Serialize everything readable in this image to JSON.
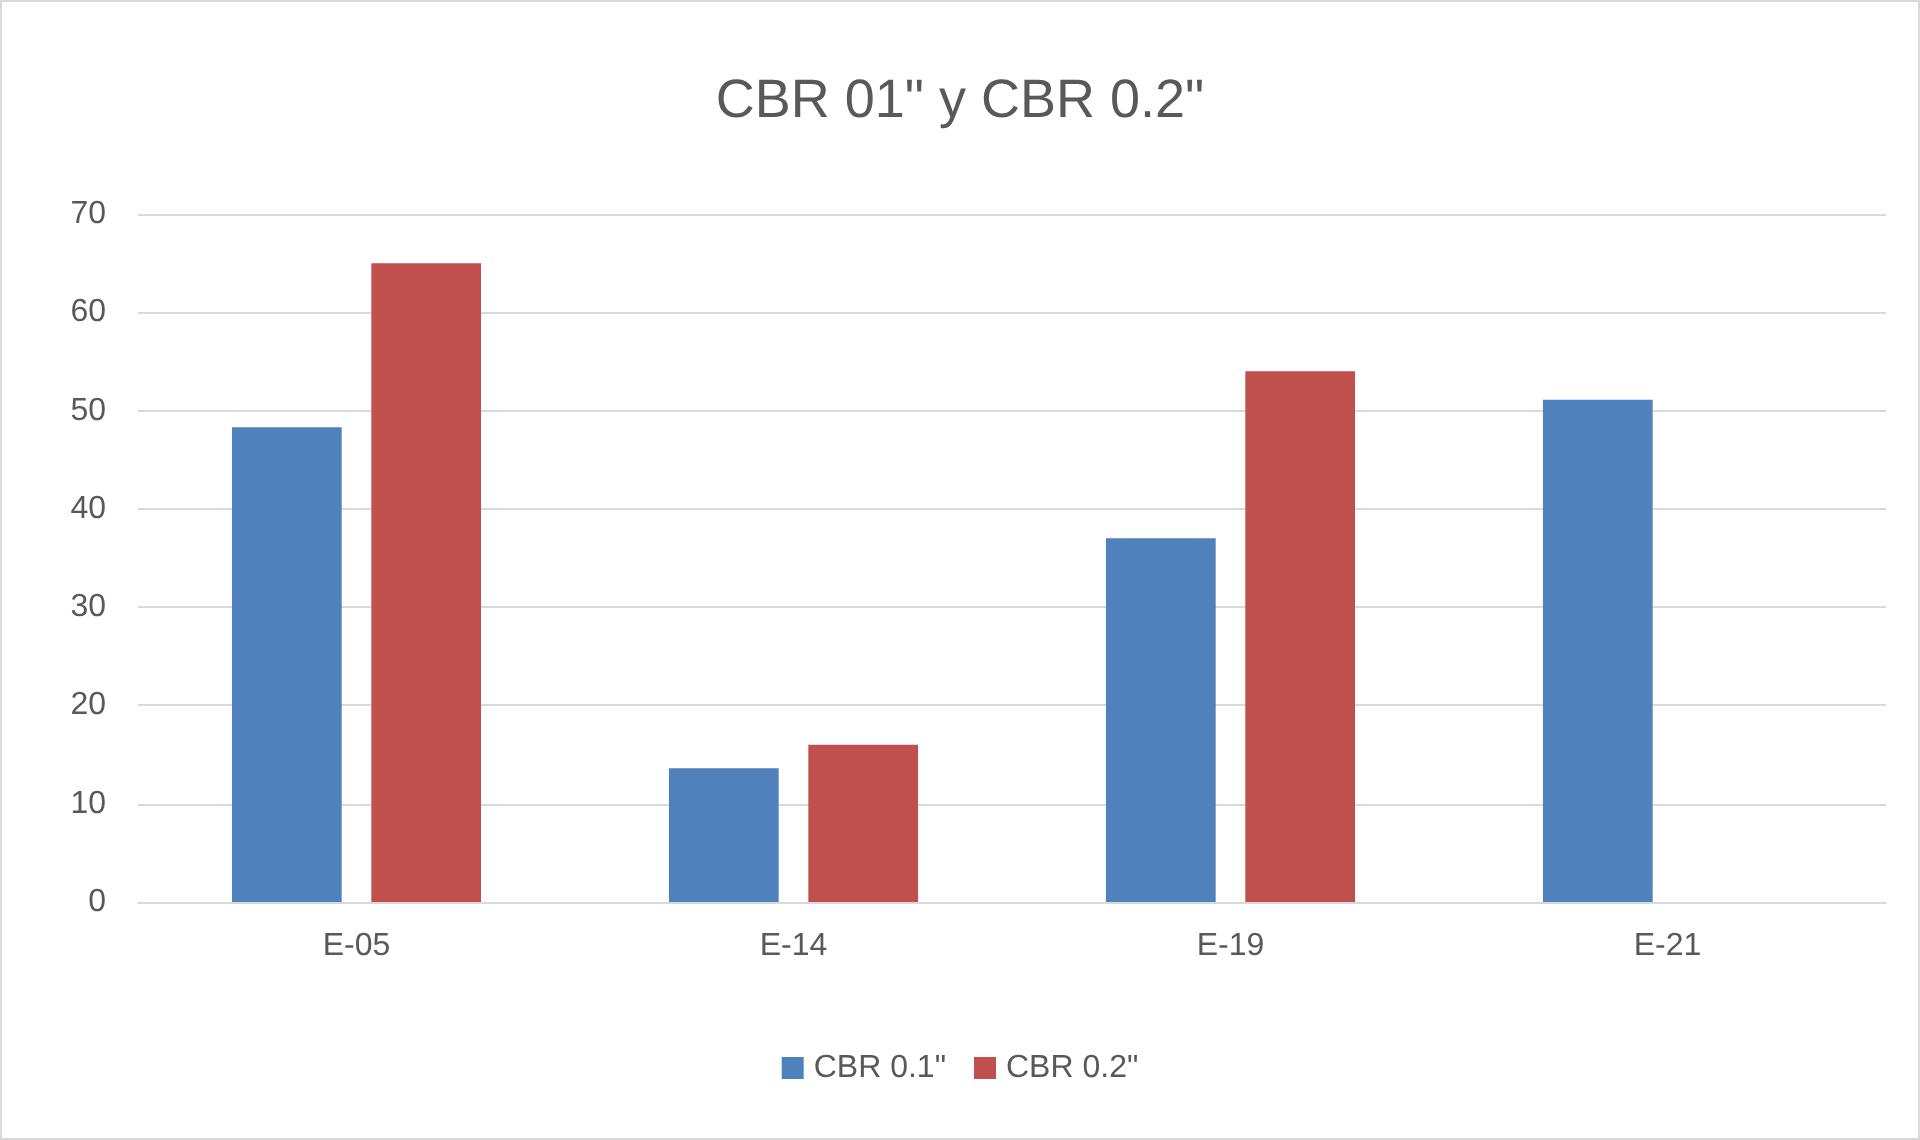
{
  "chart_data": {
    "type": "bar",
    "title": "CBR 01\" y CBR 0.2\"",
    "categories": [
      "E-05",
      "E-14",
      "E-19",
      "E-21"
    ],
    "series": [
      {
        "name": "CBR 0.1\"",
        "color": "#4f81bd",
        "values": [
          48.3,
          13.6,
          37,
          51.1
        ]
      },
      {
        "name": "CBR 0.2\"",
        "color": "#c0504d",
        "values": [
          65,
          16,
          54,
          null
        ]
      }
    ],
    "ylim": [
      0,
      70
    ],
    "yticks": [
      0,
      10,
      20,
      30,
      40,
      50,
      60,
      70
    ],
    "grid": "y",
    "legend": "bottom"
  }
}
